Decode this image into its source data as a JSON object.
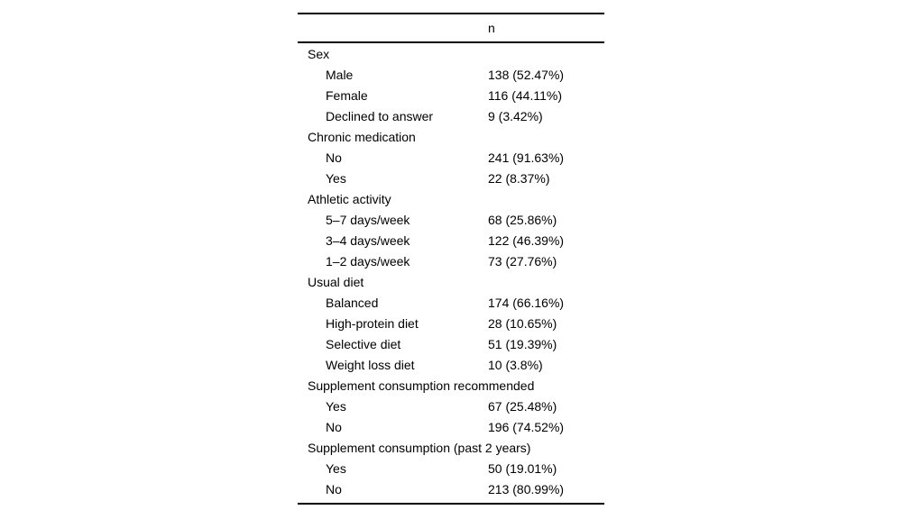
{
  "table": {
    "column_header": "n",
    "colors": {
      "text": "#000000",
      "rule": "#000000",
      "background": "#ffffff"
    },
    "rows": [
      {
        "label": "Sex",
        "type": "section"
      },
      {
        "label": "Male",
        "value": "138 (52.47%)"
      },
      {
        "label": "Female",
        "value": "116 (44.11%)"
      },
      {
        "label": "Declined to answer",
        "value": "9 (3.42%)"
      },
      {
        "label": "Chronic medication",
        "type": "section"
      },
      {
        "label": "No",
        "value": "241 (91.63%)"
      },
      {
        "label": "Yes",
        "value": "22 (8.37%)"
      },
      {
        "label": "Athletic activity",
        "type": "section"
      },
      {
        "label": "5–7 days/week",
        "value": "68 (25.86%)"
      },
      {
        "label": "3–4 days/week",
        "value": "122 (46.39%)"
      },
      {
        "label": "1–2 days/week",
        "value": "73 (27.76%)"
      },
      {
        "label": "Usual diet",
        "type": "section"
      },
      {
        "label": "Balanced",
        "value": "174 (66.16%)"
      },
      {
        "label": "High-protein diet",
        "value": "28 (10.65%)"
      },
      {
        "label": "Selective diet",
        "value": "51 (19.39%)"
      },
      {
        "label": "Weight loss diet",
        "value": "10 (3.8%)"
      },
      {
        "label": "Supplement consumption recommended",
        "type": "section"
      },
      {
        "label": "Yes",
        "value": "67 (25.48%)"
      },
      {
        "label": "No",
        "value": "196 (74.52%)"
      },
      {
        "label": "Supplement consumption (past 2 years)",
        "type": "section"
      },
      {
        "label": "Yes",
        "value": "50 (19.01%)"
      },
      {
        "label": "No",
        "value": "213 (80.99%)"
      }
    ]
  }
}
